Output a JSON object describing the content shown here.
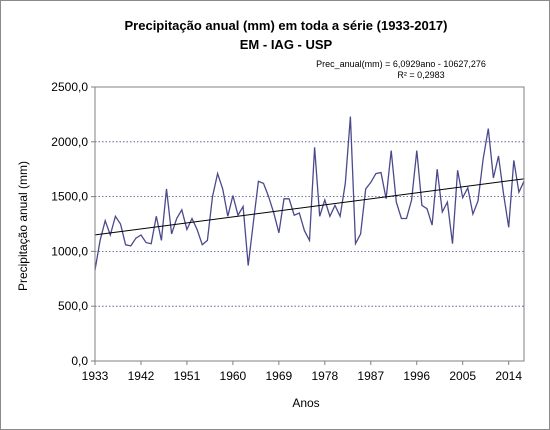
{
  "chart_data": {
    "type": "line",
    "title": "Precipitação anual  (mm)  em toda a série (1933-2017)",
    "subtitle": "EM - IAG - USP",
    "xlabel": "Anos",
    "ylabel": "Precipitação anual (mm)",
    "ylim": [
      0,
      2500
    ],
    "xlim": [
      1933,
      2017
    ],
    "y_ticks": [
      "0,0",
      "500,0",
      "1000,0",
      "1500,0",
      "2000,0",
      "2500,0"
    ],
    "y_tick_values": [
      0,
      500,
      1000,
      1500,
      2000,
      2500
    ],
    "x_ticks": [
      "1933",
      "1942",
      "1951",
      "1960",
      "1969",
      "1978",
      "1987",
      "1996",
      "2005",
      "2014"
    ],
    "x_tick_values": [
      1933,
      1942,
      1951,
      1960,
      1969,
      1978,
      1987,
      1996,
      2005,
      2014
    ],
    "grid": "horizontal dotted",
    "series_color": "#4a4a8c",
    "trend_color": "#000000",
    "trendline": {
      "equation": "Prec_anual(mm)  = 6,0929ano  - 10627,276",
      "r2": "R² = 0,2983",
      "slope": 6.0929,
      "intercept": -10627.276
    },
    "x": [
      1933,
      1934,
      1935,
      1936,
      1937,
      1938,
      1939,
      1940,
      1941,
      1942,
      1943,
      1944,
      1945,
      1946,
      1947,
      1948,
      1949,
      1950,
      1951,
      1952,
      1953,
      1954,
      1955,
      1956,
      1957,
      1958,
      1959,
      1960,
      1961,
      1962,
      1963,
      1964,
      1965,
      1966,
      1967,
      1968,
      1969,
      1970,
      1971,
      1972,
      1973,
      1974,
      1975,
      1976,
      1977,
      1978,
      1979,
      1980,
      1981,
      1982,
      1983,
      1984,
      1985,
      1986,
      1987,
      1988,
      1989,
      1990,
      1991,
      1992,
      1993,
      1994,
      1995,
      1996,
      1997,
      1998,
      1999,
      2000,
      2001,
      2002,
      2003,
      2004,
      2005,
      2006,
      2007,
      2008,
      2009,
      2010,
      2011,
      2012,
      2013,
      2014,
      2015,
      2016,
      2017
    ],
    "values": [
      830,
      1100,
      1280,
      1150,
      1320,
      1250,
      1060,
      1050,
      1120,
      1150,
      1080,
      1070,
      1320,
      1100,
      1570,
      1160,
      1300,
      1380,
      1200,
      1300,
      1200,
      1060,
      1100,
      1500,
      1710,
      1570,
      1320,
      1510,
      1330,
      1410,
      870,
      1260,
      1640,
      1620,
      1500,
      1350,
      1170,
      1480,
      1480,
      1330,
      1350,
      1190,
      1100,
      1950,
      1320,
      1470,
      1320,
      1420,
      1320,
      1620,
      2230,
      1070,
      1160,
      1570,
      1630,
      1710,
      1720,
      1480,
      1920,
      1450,
      1300,
      1300,
      1470,
      1920,
      1420,
      1390,
      1240,
      1750,
      1360,
      1450,
      1070,
      1740,
      1490,
      1580,
      1340,
      1460,
      1840,
      2120,
      1670,
      1870,
      1520,
      1220,
      1830,
      1540,
      1640
    ]
  }
}
